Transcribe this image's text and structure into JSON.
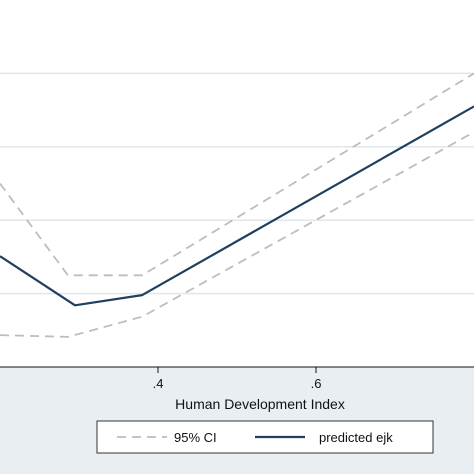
{
  "chart_data": {
    "type": "line",
    "xlabel": "Human Development Index",
    "ylabel": "",
    "xlim": [
      0.2,
      0.8
    ],
    "ylim": [
      0,
      1
    ],
    "x_ticks": [
      {
        "value": 0.4,
        "label": ".4"
      },
      {
        "value": 0.6,
        "label": ".6"
      }
    ],
    "y_grid": [
      0.0,
      0.2,
      0.4,
      0.6,
      0.8,
      1.0
    ],
    "grid": true,
    "series": [
      {
        "name": "95% CI",
        "style": "dashed",
        "color": "#bdbdbd",
        "x": [
          0.2,
          0.286,
          0.38,
          0.8
        ],
        "y": [
          0.5,
          0.25,
          0.25,
          0.8
        ]
      },
      {
        "name": "95% CI",
        "style": "dashed",
        "color": "#bdbdbd",
        "x": [
          0.2,
          0.286,
          0.38,
          0.8
        ],
        "y": [
          0.087,
          0.082,
          0.137,
          0.64
        ]
      },
      {
        "name": "predicted ejk",
        "style": "solid",
        "color": "#1f3f5f",
        "x": [
          0.2,
          0.295,
          0.38,
          0.8
        ],
        "y": [
          0.302,
          0.168,
          0.196,
          0.71
        ]
      }
    ],
    "legend": {
      "position": "bottom",
      "entries": [
        {
          "label": "95% CI",
          "style": "dashed",
          "color": "#bdbdbd"
        },
        {
          "label": "predicted ejk",
          "style": "solid",
          "color": "#1f3f5f"
        }
      ]
    }
  }
}
